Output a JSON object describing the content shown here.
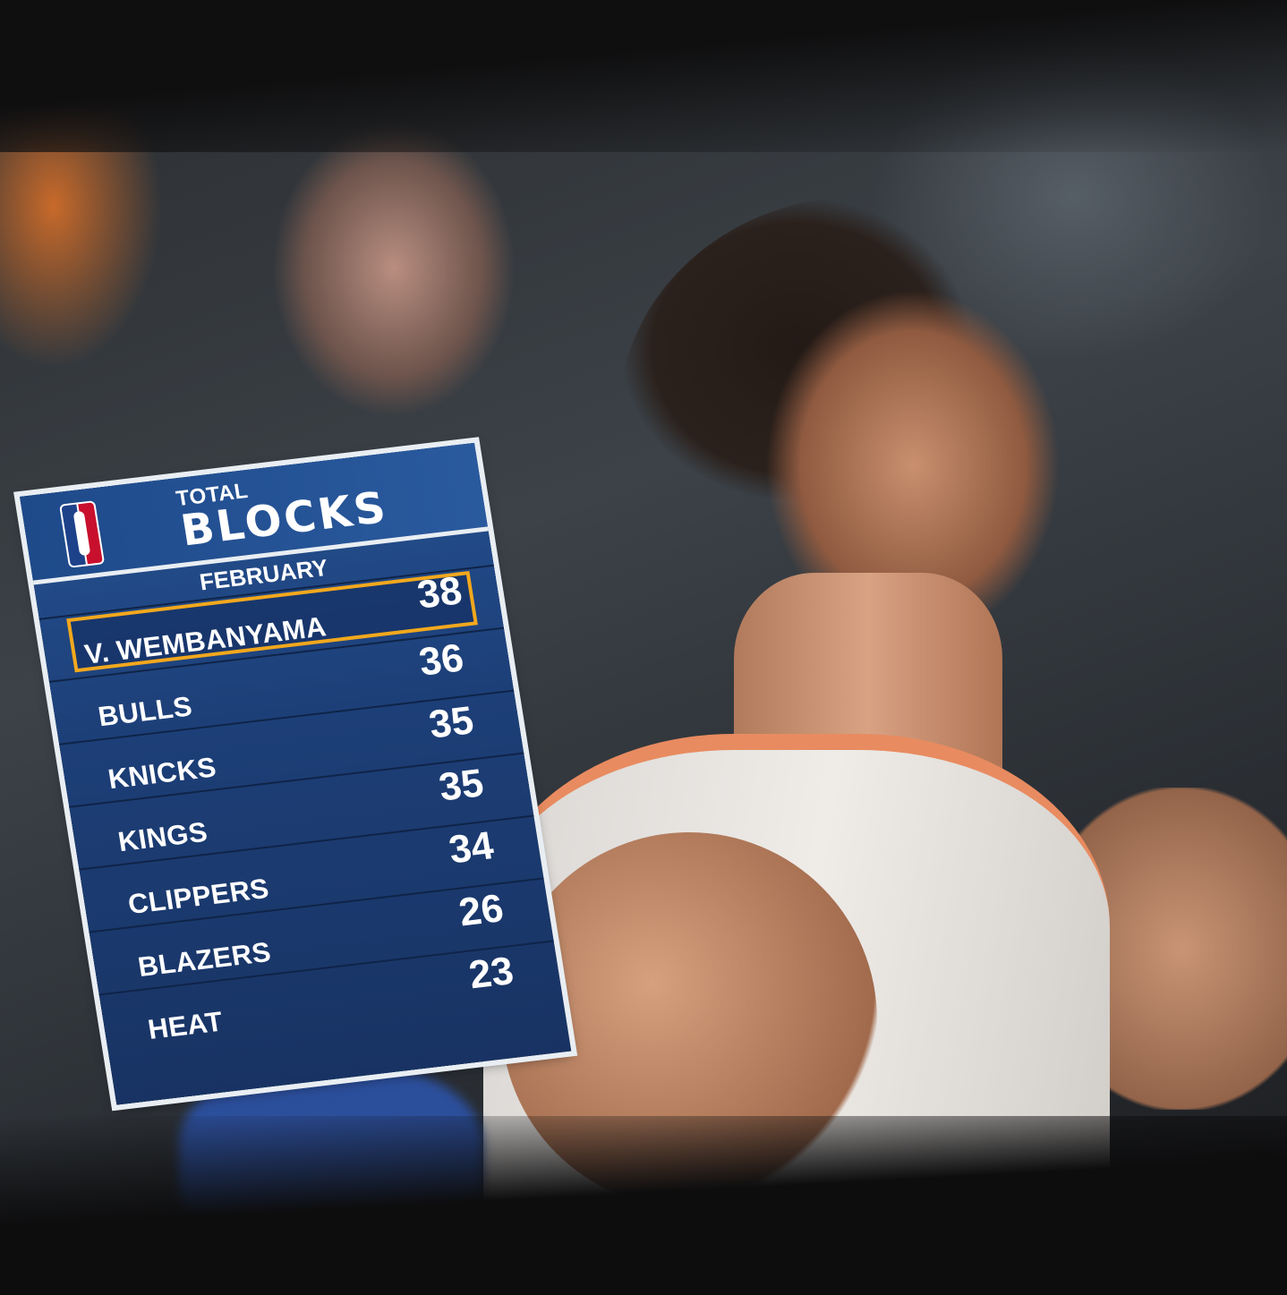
{
  "graphic": {
    "title_small": "TOTAL",
    "title_big": "BLOCKS",
    "period": "FEBRUARY",
    "highlight_color": "#f2a81d",
    "panel_color": "#1d3f78",
    "rows": [
      {
        "name": "V. WEMBANYAMA",
        "value": "38",
        "highlighted": true
      },
      {
        "name": "BULLS",
        "value": "36"
      },
      {
        "name": "KNICKS",
        "value": "35"
      },
      {
        "name": "KINGS",
        "value": "35"
      },
      {
        "name": "CLIPPERS",
        "value": "34"
      },
      {
        "name": "BLAZERS",
        "value": "26"
      },
      {
        "name": "HEAT",
        "value": "23"
      }
    ]
  }
}
